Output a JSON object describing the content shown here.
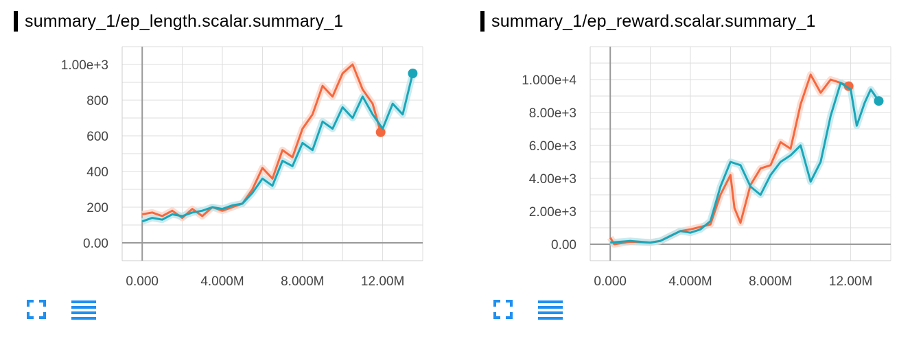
{
  "colors": {
    "orange": "#f4683f",
    "teal": "#1aa6b8",
    "orange_light": "#fcd4c7",
    "teal_light": "#bfe6ec",
    "icon_blue": "#1f8ff0"
  },
  "icons": {
    "fullscreen": "fullscreen-icon",
    "menu": "menu-lines-icon"
  },
  "charts": [
    {
      "title": "summary_1/ep_length.scalar.summary_1",
      "fullscreen_label": "",
      "menu_label": ""
    },
    {
      "title": "summary_1/ep_reward.scalar.summary_1",
      "fullscreen_label": "",
      "menu_label": ""
    }
  ],
  "chart_data": [
    {
      "type": "line",
      "title": "summary_1/ep_length.scalar.summary_1",
      "xlabel": "",
      "ylabel": "",
      "xlim": [
        -1000000,
        14000000
      ],
      "ylim": [
        -100,
        1100
      ],
      "grid": true,
      "x_ticks": [
        0,
        4000000,
        8000000,
        12000000
      ],
      "x_tick_labels": [
        "0.000",
        "4.000M",
        "8.000M",
        "12.00M"
      ],
      "y_ticks": [
        0,
        200,
        400,
        600,
        800,
        1000
      ],
      "y_tick_labels": [
        "0.00",
        "200",
        "400",
        "600",
        "800",
        "1.00e+3"
      ],
      "series": [
        {
          "color": "#f4683f",
          "x": [
            0,
            500000,
            1000000,
            1500000,
            2000000,
            2500000,
            3000000,
            3500000,
            4000000,
            4500000,
            5000000,
            5500000,
            6000000,
            6500000,
            7000000,
            7500000,
            8000000,
            8500000,
            9000000,
            9500000,
            10000000,
            10500000,
            11000000,
            11500000,
            11900000
          ],
          "y": [
            160,
            170,
            150,
            180,
            140,
            190,
            150,
            200,
            180,
            200,
            220,
            300,
            420,
            360,
            520,
            480,
            640,
            720,
            880,
            820,
            950,
            1000,
            860,
            780,
            620
          ]
        },
        {
          "color": "#1aa6b8",
          "x": [
            0,
            500000,
            1000000,
            1500000,
            2000000,
            2500000,
            3000000,
            3500000,
            4000000,
            4500000,
            5000000,
            5500000,
            6000000,
            6500000,
            7000000,
            7500000,
            8000000,
            8500000,
            9000000,
            9500000,
            10000000,
            10500000,
            11000000,
            11500000,
            12000000,
            12500000,
            13000000,
            13500000
          ],
          "y": [
            120,
            140,
            130,
            160,
            150,
            170,
            180,
            200,
            190,
            210,
            220,
            280,
            360,
            320,
            460,
            430,
            560,
            520,
            680,
            640,
            760,
            700,
            820,
            720,
            640,
            780,
            720,
            950
          ]
        }
      ]
    },
    {
      "type": "line",
      "title": "summary_1/ep_reward.scalar.summary_1",
      "xlabel": "",
      "ylabel": "",
      "xlim": [
        -1000000,
        14000000
      ],
      "ylim": [
        -1000,
        12000
      ],
      "grid": true,
      "x_ticks": [
        0,
        4000000,
        8000000,
        12000000
      ],
      "x_tick_labels": [
        "0.000",
        "4.000M",
        "8.000M",
        "12.00M"
      ],
      "y_ticks": [
        0,
        2000,
        4000,
        6000,
        8000,
        10000
      ],
      "y_tick_labels": [
        "0.00",
        "2.00e+3",
        "4.00e+3",
        "6.00e+3",
        "8.00e+3",
        "1.000e+4"
      ],
      "series": [
        {
          "color": "#f4683f",
          "x": [
            0,
            200000,
            1000000,
            2000000,
            2500000,
            3000000,
            3500000,
            4000000,
            5000000,
            5500000,
            6000000,
            6200000,
            6500000,
            7000000,
            7500000,
            8000000,
            8500000,
            9000000,
            9500000,
            10000000,
            10500000,
            11000000,
            11500000,
            11900000
          ],
          "y": [
            400,
            0,
            150,
            100,
            200,
            500,
            800,
            900,
            1200,
            3000,
            4200,
            2200,
            1300,
            3600,
            4600,
            4800,
            6200,
            5800,
            8500,
            10300,
            9200,
            10000,
            9800,
            9600
          ]
        },
        {
          "color": "#1aa6b8",
          "x": [
            0,
            1000000,
            2000000,
            2500000,
            3000000,
            3500000,
            4000000,
            4500000,
            5000000,
            5500000,
            6000000,
            6500000,
            7000000,
            7500000,
            8000000,
            8500000,
            9000000,
            9500000,
            10000000,
            10500000,
            11000000,
            11500000,
            12000000,
            12300000,
            12700000,
            13000000,
            13400000
          ],
          "y": [
            100,
            200,
            100,
            200,
            500,
            800,
            700,
            900,
            1400,
            3500,
            5000,
            4800,
            3500,
            3000,
            4200,
            5000,
            5400,
            6000,
            3800,
            5000,
            7800,
            9800,
            9400,
            7200,
            8600,
            9400,
            8700
          ]
        }
      ]
    }
  ]
}
